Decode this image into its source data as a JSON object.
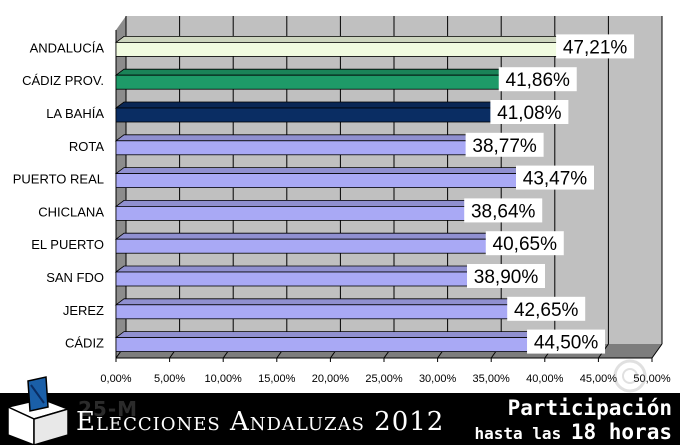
{
  "chart_data": {
    "type": "bar",
    "orientation": "horizontal",
    "categories": [
      "ANDALUCÍA",
      "CÁDIZ PROV.",
      "LA BAHÍA",
      "ROTA",
      "PUERTO REAL",
      "CHICLANA",
      "EL PUERTO",
      "SAN FDO",
      "JEREZ",
      "CÁDIZ"
    ],
    "values": [
      47.21,
      41.86,
      41.08,
      38.77,
      43.47,
      38.64,
      40.65,
      38.9,
      42.65,
      44.5
    ],
    "value_labels": [
      "47,21%",
      "41,86%",
      "41,08%",
      "38,77%",
      "43,47%",
      "38,64%",
      "40,65%",
      "38,90%",
      "42,65%",
      "44,50%"
    ],
    "bar_colors": [
      "#f1fbe0",
      "#1e9a68",
      "#0a2d63",
      "#a9a9f5",
      "#a9a9f5",
      "#a9a9f5",
      "#a9a9f5",
      "#a9a9f5",
      "#a9a9f5",
      "#a9a9f5"
    ],
    "xlim": [
      0,
      50
    ],
    "x_ticks": [
      "0,00%",
      "5,00%",
      "10,00%",
      "15,00%",
      "20,00%",
      "25,00%",
      "30,00%",
      "35,00%",
      "40,00%",
      "45,00%",
      "50,00%"
    ],
    "grid": true,
    "plot_background": "#c0c0c0"
  },
  "footer": {
    "ghost_text": "25-M",
    "brand": "Elecciones Andaluzas 2012",
    "participation_title": "Participación",
    "participation_prefix": "hasta las",
    "participation_hour": "18 horas"
  }
}
